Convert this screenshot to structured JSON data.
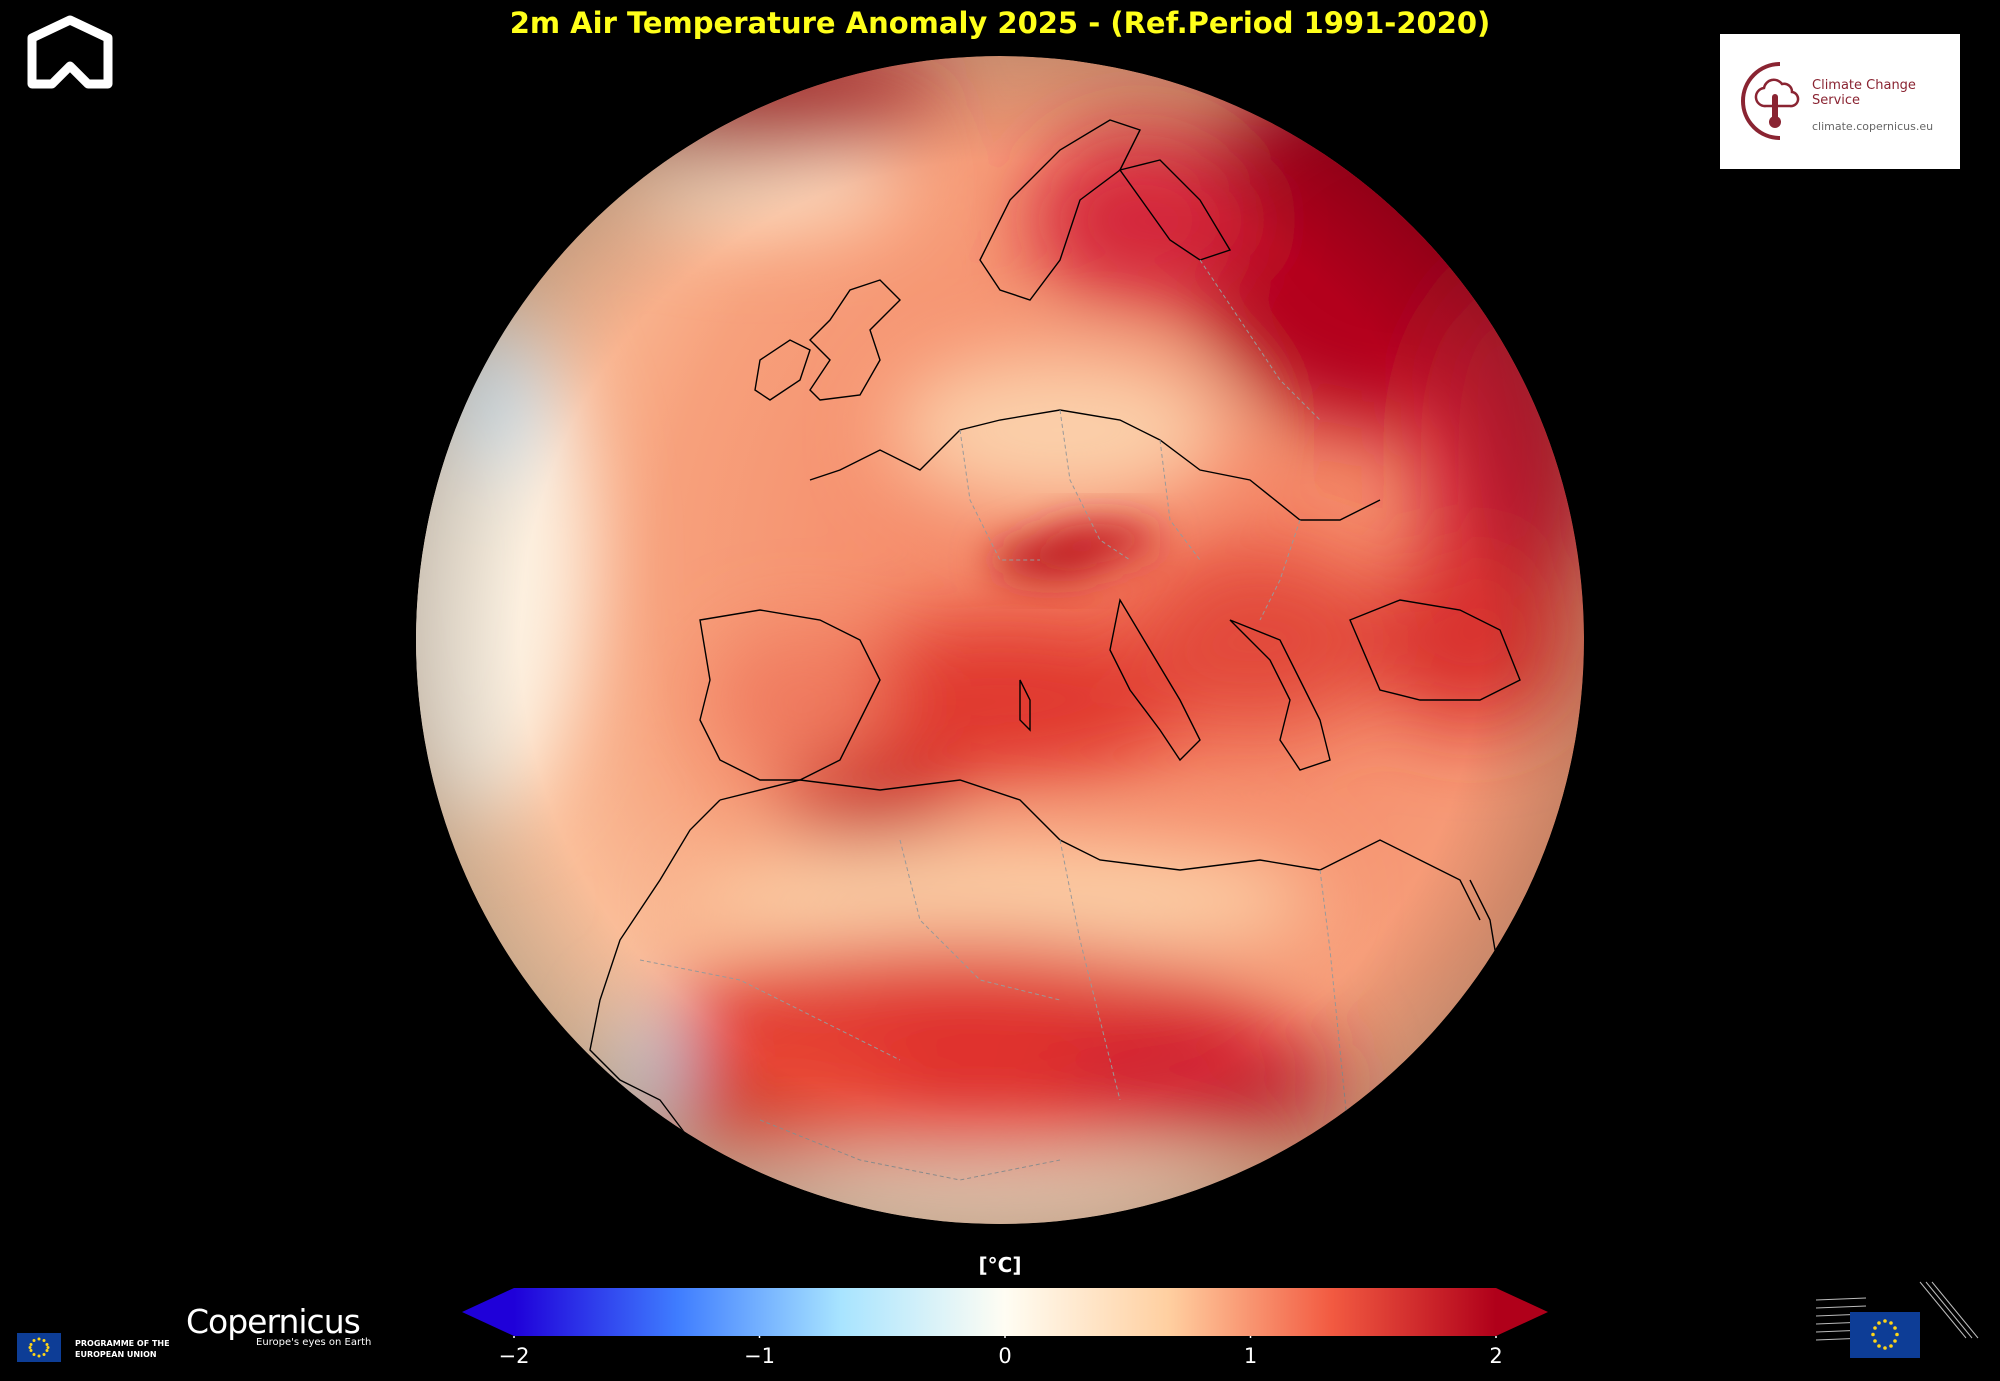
{
  "title": "2m Air Temperature Anomaly 2025 - (Ref.Period 1991-2020)",
  "colorbar": {
    "unit": "[°C]",
    "ticks": [
      "−2",
      "−1",
      "0",
      "1",
      "2"
    ],
    "tick_values": [
      -2,
      -1,
      0,
      1,
      2
    ],
    "range": [
      -2,
      2
    ],
    "colors": [
      "#1f00d9",
      "#3f7dff",
      "#a8e4ff",
      "#fffdf3",
      "#ffcfa0",
      "#f25a41",
      "#b0001a"
    ]
  },
  "logos": {
    "climate_change_service": "Climate Change Service",
    "climate_url": "climate.copernicus.eu",
    "eu_programme": "PROGRAMME OF THE EUROPEAN UNION",
    "copernicus": "Copernicus",
    "copernicus_tagline": "Europe's eyes on Earth"
  },
  "icons": {
    "top_left": "house-outline-logo-icon",
    "thermometer": "thermometer-cloud-icon",
    "eu_flag": "eu-flag-icon",
    "european_commission": "european-commission-building-icon"
  },
  "map": {
    "projection": "orthographic globe centred on Europe / Mediterranean",
    "value_min": -2,
    "value_max": 2
  }
}
